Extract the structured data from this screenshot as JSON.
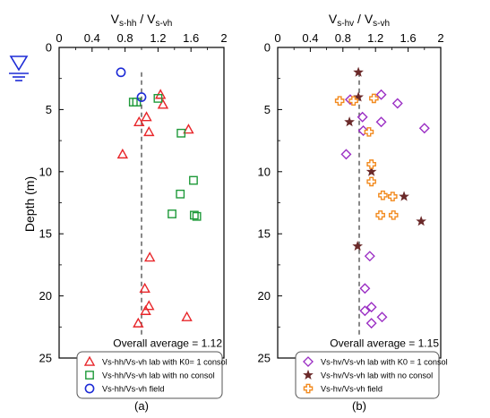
{
  "chart_data": [
    {
      "type": "scatter",
      "panel_label": "(a)",
      "xlabel": {
        "main": "V",
        "sub1": "s-hh",
        "sep": " / V",
        "sub2": "s-vh"
      },
      "ylabel": "Depth (m)",
      "xlim": [
        0,
        2
      ],
      "ylim": [
        0,
        25
      ],
      "y_inverted": true,
      "x_ticks": [
        "0",
        "0.4",
        "0.8",
        "1.2",
        "1.6",
        "2"
      ],
      "y_ticks": [
        "0",
        "5",
        "10",
        "15",
        "20",
        "25"
      ],
      "average_text": "Overall average = 1.12",
      "reference_line_x": 1.0,
      "legend_position": "bottom-right",
      "series": [
        {
          "name": "Vs-hh/Vs-vh lab with K0= 1 consol",
          "marker": "triangle",
          "color": "#e8262a",
          "x": [
            1.23,
            1.26,
            1.06,
            0.97,
            1.57,
            1.09,
            0.77,
            1.1,
            1.04,
            1.05,
            1.09,
            1.55,
            0.96
          ],
          "y": [
            3.8,
            4.6,
            5.6,
            6.0,
            6.6,
            6.8,
            8.6,
            16.9,
            19.4,
            21.2,
            20.8,
            21.7,
            22.2
          ]
        },
        {
          "name": "Vs-hh/Vs-vh lab with no consol",
          "marker": "square",
          "color": "#1f9a3a",
          "x": [
            0.9,
            0.94,
            1.2,
            1.48,
            1.63,
            1.47,
            1.64,
            1.37,
            1.67
          ],
          "y": [
            4.4,
            4.4,
            4.1,
            6.9,
            10.7,
            11.8,
            13.5,
            13.4,
            13.6
          ]
        },
        {
          "name": "Vs-hh/Vs-vh field",
          "marker": "circle",
          "color": "#1d2bd6",
          "x": [
            0.75,
            1.0
          ],
          "y": [
            2.0,
            4.0
          ]
        }
      ]
    },
    {
      "type": "scatter",
      "panel_label": "(b)",
      "xlabel": {
        "main": "V",
        "sub1": "s-hv",
        "sep": " / V",
        "sub2": "s-vh"
      },
      "xlim": [
        0,
        2
      ],
      "ylim": [
        0,
        25
      ],
      "y_inverted": true,
      "x_ticks": [
        "0",
        "0.4",
        "0.8",
        "1.2",
        "1.6",
        "2"
      ],
      "y_ticks": [
        "0",
        "5",
        "10",
        "15",
        "20",
        "25"
      ],
      "average_text": "Overall average = 1.15",
      "reference_line_x": 1.0,
      "legend_position": "bottom-right",
      "series": [
        {
          "name": "Vs-hv/Vs-vh lab with K0 = 1 consol",
          "marker": "diamond",
          "color": "#9b2fc4",
          "x": [
            0.89,
            1.27,
            1.47,
            1.04,
            1.27,
            1.05,
            1.8,
            0.84,
            1.13,
            1.07,
            1.15,
            1.07,
            1.28,
            1.15
          ],
          "y": [
            4.2,
            3.8,
            4.5,
            5.6,
            6.0,
            6.7,
            6.5,
            8.6,
            16.8,
            19.4,
            20.9,
            21.2,
            21.7,
            22.2
          ]
        },
        {
          "name": "Vs-hv/Vs-vh lab with no consol",
          "marker": "star",
          "color": "#6b2a2a",
          "x": [
            0.99,
            0.99,
            0.88,
            1.15,
            1.55,
            1.76,
            0.98
          ],
          "y": [
            2.0,
            4.0,
            6.0,
            10.0,
            12.0,
            14.0,
            16.0
          ]
        },
        {
          "name": "Vs-hv/Vs-vh field",
          "marker": "plus",
          "color": "#f28a1e",
          "x": [
            0.76,
            0.93,
            1.18,
            1.12,
            1.15,
            1.15,
            1.29,
            1.41,
            1.26,
            1.42
          ],
          "y": [
            4.3,
            4.3,
            4.1,
            6.8,
            9.4,
            10.8,
            11.9,
            12.0,
            13.5,
            13.5
          ]
        }
      ]
    }
  ]
}
